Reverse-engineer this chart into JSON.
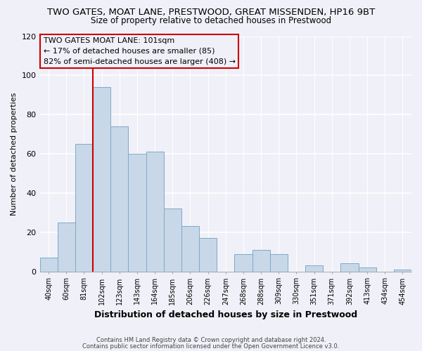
{
  "title": "TWO GATES, MOAT LANE, PRESTWOOD, GREAT MISSENDEN, HP16 9BT",
  "subtitle": "Size of property relative to detached houses in Prestwood",
  "xlabel": "Distribution of detached houses by size in Prestwood",
  "ylabel": "Number of detached properties",
  "bar_color": "#c8d8e8",
  "bar_edge_color": "#7fa8c8",
  "bin_labels": [
    "40sqm",
    "60sqm",
    "81sqm",
    "102sqm",
    "123sqm",
    "143sqm",
    "164sqm",
    "185sqm",
    "206sqm",
    "226sqm",
    "247sqm",
    "268sqm",
    "288sqm",
    "309sqm",
    "330sqm",
    "351sqm",
    "371sqm",
    "392sqm",
    "413sqm",
    "434sqm",
    "454sqm"
  ],
  "bar_heights": [
    7,
    25,
    65,
    94,
    74,
    60,
    61,
    32,
    23,
    17,
    0,
    9,
    11,
    9,
    0,
    3,
    0,
    4,
    2,
    0,
    1
  ],
  "ylim": [
    0,
    120
  ],
  "yticks": [
    0,
    20,
    40,
    60,
    80,
    100,
    120
  ],
  "vline_bar_index": 3,
  "vline_color": "#cc0000",
  "annotation_line1": "TWO GATES MOAT LANE: 101sqm",
  "annotation_line2": "← 17% of detached houses are smaller (85)",
  "annotation_line3": "82% of semi-detached houses are larger (408) →",
  "annotation_box_edge": "#cc0000",
  "footnote1": "Contains HM Land Registry data © Crown copyright and database right 2024.",
  "footnote2": "Contains public sector information licensed under the Open Government Licence v3.0.",
  "background_color": "#f0f0f8",
  "grid_color": "#ffffff"
}
